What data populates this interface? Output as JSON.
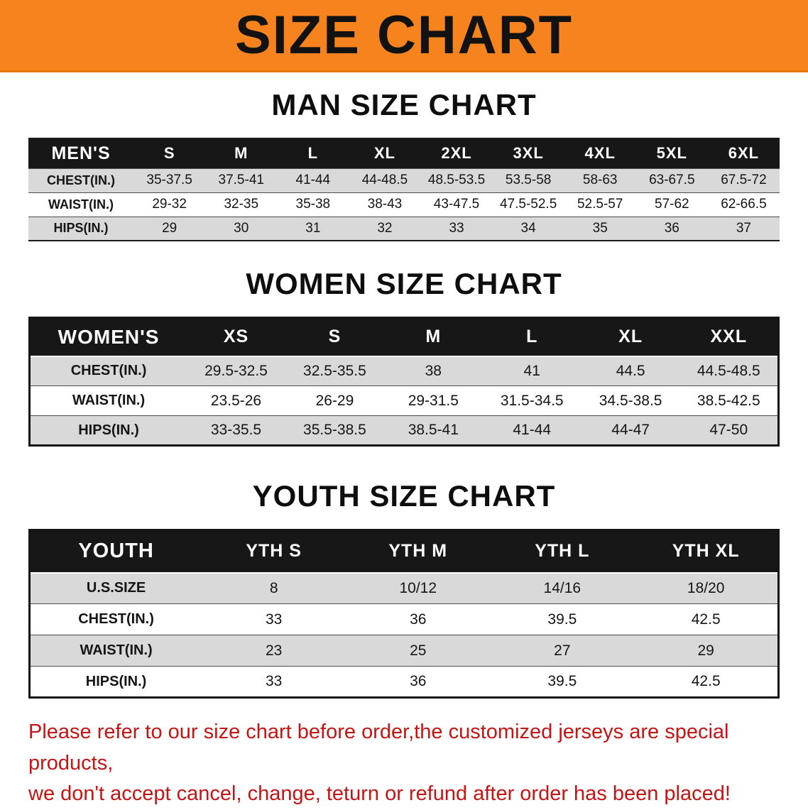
{
  "banner": {
    "title": "SIZE CHART",
    "bg_color": "#f6831e",
    "text_color": "#121212"
  },
  "sections": [
    {
      "id": "men",
      "title": "MAN SIZE CHART",
      "table": {
        "header": [
          "MEN'S",
          "S",
          "M",
          "L",
          "XL",
          "2XL",
          "3XL",
          "4XL",
          "5XL",
          "6XL"
        ],
        "rows": [
          [
            "CHEST(IN.)",
            "35-37.5",
            "37.5-41",
            "41-44",
            "44-48.5",
            "48.5-53.5",
            "53.5-58",
            "58-63",
            "63-67.5",
            "67.5-72"
          ],
          [
            "WAIST(IN.)",
            "29-32",
            "32-35",
            "35-38",
            "38-43",
            "43-47.5",
            "47.5-52.5",
            "52.5-57",
            "57-62",
            "62-66.5"
          ],
          [
            "HIPS(IN.)",
            "29",
            "30",
            "31",
            "32",
            "33",
            "34",
            "35",
            "36",
            "37"
          ]
        ]
      }
    },
    {
      "id": "women",
      "title": "WOMEN SIZE CHART",
      "table": {
        "header": [
          "WOMEN'S",
          "XS",
          "S",
          "M",
          "L",
          "XL",
          "XXL"
        ],
        "rows": [
          [
            "CHEST(IN.)",
            "29.5-32.5",
            "32.5-35.5",
            "38",
            "41",
            "44.5",
            "44.5-48.5"
          ],
          [
            "WAIST(IN.)",
            "23.5-26",
            "26-29",
            "29-31.5",
            "31.5-34.5",
            "34.5-38.5",
            "38.5-42.5"
          ],
          [
            "HIPS(IN.)",
            "33-35.5",
            "35.5-38.5",
            "38.5-41",
            "41-44",
            "44-47",
            "47-50"
          ]
        ]
      }
    },
    {
      "id": "youth",
      "title": "YOUTH SIZE CHART",
      "table": {
        "header": [
          "YOUTH",
          "YTH S",
          "YTH M",
          "YTH L",
          "YTH XL"
        ],
        "rows": [
          [
            "U.S.SIZE",
            "8",
            "10/12",
            "14/16",
            "18/20"
          ],
          [
            "CHEST(IN.)",
            "33",
            "36",
            "39.5",
            "42.5"
          ],
          [
            "WAIST(IN.)",
            "23",
            "25",
            "27",
            "29"
          ],
          [
            "HIPS(IN.)",
            "33",
            "36",
            "39.5",
            "42.5"
          ]
        ]
      }
    }
  ],
  "disclaimer": {
    "lines": [
      "Please refer to our size chart before order,the customized jerseys are special products,",
      "we don't accept cancel, change, teturn or refund after order has been placed!"
    ],
    "color": "#c51414"
  }
}
